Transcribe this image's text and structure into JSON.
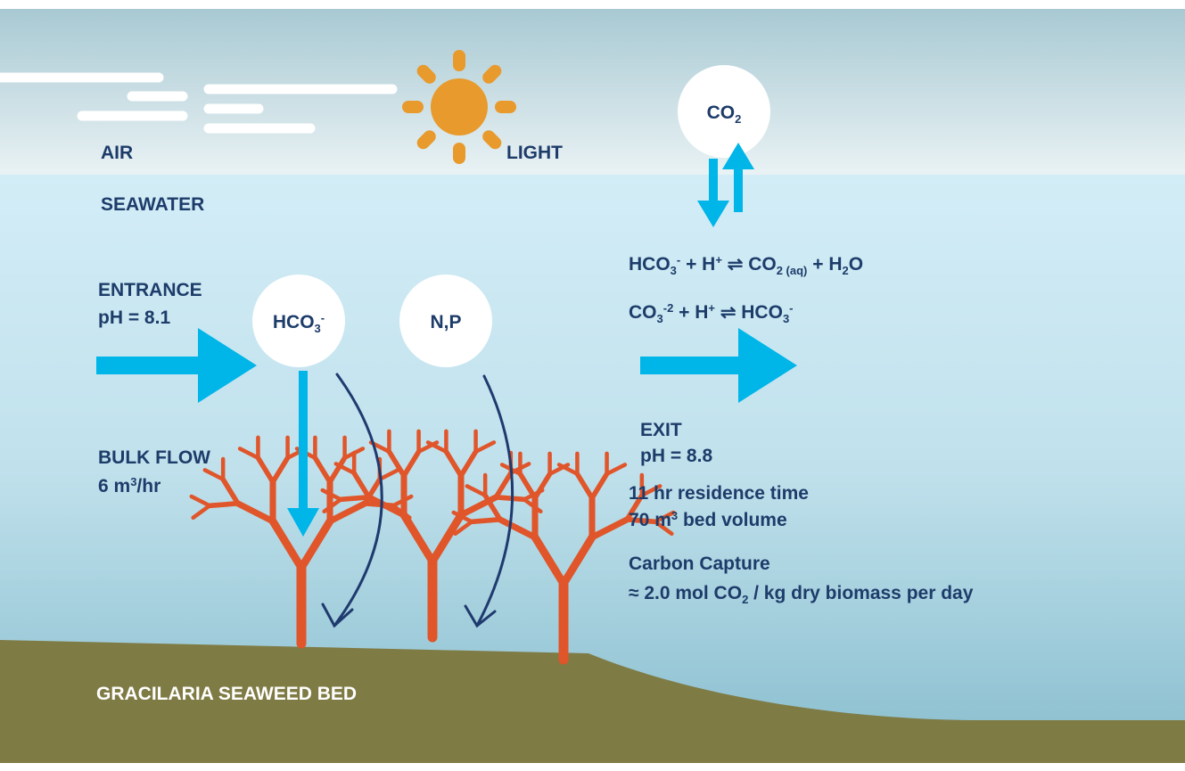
{
  "air": "AIR",
  "light": "LIGHT",
  "seawater": "SEAWATER",
  "co2": [
    {
      "text": "CO"
    },
    {
      "sub": "2"
    }
  ],
  "entrance": {
    "title": "ENTRANCE",
    "ph": "pH = 8.1"
  },
  "hco3": [
    {
      "text": "HCO"
    },
    {
      "sub": "3"
    },
    {
      "sup": "-"
    }
  ],
  "np": "N,P",
  "equations": [
    [
      {
        "text": "HCO"
      },
      {
        "sub": "3"
      },
      {
        "sup": "-"
      },
      {
        "text": " + H"
      },
      {
        "sup": "+"
      },
      {
        "text": " ⇌ CO"
      },
      {
        "sub": "2 (aq)"
      },
      {
        "text": " + H"
      },
      {
        "sub": "2"
      },
      {
        "text": "O"
      }
    ],
    [
      {
        "text": "CO"
      },
      {
        "sub": "3"
      },
      {
        "sup": "-2"
      },
      {
        "text": " + H"
      },
      {
        "sup": "+"
      },
      {
        "text": " ⇌ HCO"
      },
      {
        "sub": "3"
      },
      {
        "sup": "-"
      }
    ]
  ],
  "bulk_flow": {
    "title": "BULK FLOW",
    "rate": [
      {
        "text": "6 m"
      },
      {
        "sup": "3"
      },
      {
        "text": "/hr"
      }
    ]
  },
  "exit": {
    "title": "EXIT",
    "ph": "pH = 8.8"
  },
  "residence": "11 hr residence time",
  "volume": [
    {
      "text": "70 m"
    },
    {
      "sup": "3"
    },
    {
      "text": " bed volume"
    }
  ],
  "carbon": {
    "title": "Carbon Capture",
    "rate": [
      {
        "text": "≈ 2.0 mol CO"
      },
      {
        "sub": "2"
      },
      {
        "text": " / kg dry biomass per day"
      }
    ]
  },
  "bed": "GRACILARIA  SEAWEED BED"
}
